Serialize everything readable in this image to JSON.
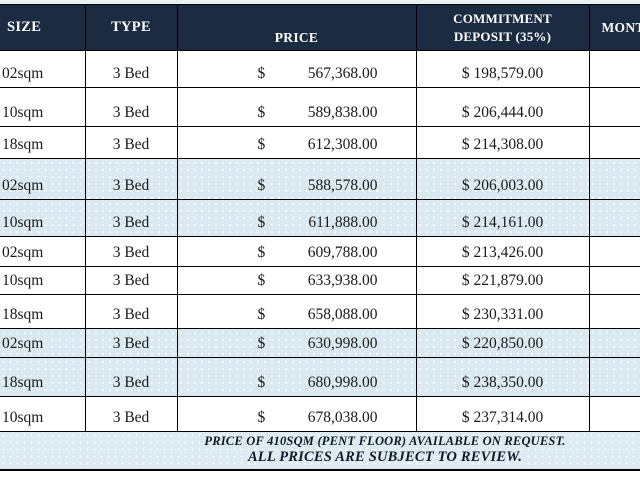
{
  "table": {
    "currency_symbol": "$",
    "columns": {
      "size": "SIZE",
      "type": "TYPE",
      "price": "PRICE",
      "deposit": "COMMITMENT DEPOSIT (35%)",
      "monthly": "MONT"
    },
    "rows": [
      {
        "size": "02sqm",
        "type": "3 Bed",
        "price": "567,368.00",
        "deposit": "$ 198,579.00",
        "highlighted": false
      },
      {
        "size": "10sqm",
        "type": "3 Bed",
        "price": "589,838.00",
        "deposit": "$ 206,444.00",
        "highlighted": false
      },
      {
        "size": "18sqm",
        "type": "3 Bed",
        "price": "612,308.00",
        "deposit": "$ 214,308.00",
        "highlighted": false
      },
      {
        "size": "02sqm",
        "type": "3 Bed",
        "price": "588,578.00",
        "deposit": "$ 206,003.00",
        "highlighted": true
      },
      {
        "size": "10sqm",
        "type": "3 Bed",
        "price": "611,888.00",
        "deposit": "$ 214,161.00",
        "highlighted": true
      },
      {
        "size": "02sqm",
        "type": "3 Bed",
        "price": "609,788.00",
        "deposit": "$ 213,426.00",
        "highlighted": false
      },
      {
        "size": "10sqm",
        "type": "3 Bed",
        "price": "633,938.00",
        "deposit": "$ 221,879.00",
        "highlighted": false
      },
      {
        "size": "18sqm",
        "type": "3 Bed",
        "price": "658,088.00",
        "deposit": "$ 230,331.00",
        "highlighted": false
      },
      {
        "size": "02sqm",
        "type": "3 Bed",
        "price": "630,998.00",
        "deposit": "$ 220,850.00",
        "highlighted": true
      },
      {
        "size": "18sqm",
        "type": "3 Bed",
        "price": "680,998.00",
        "deposit": "$ 238,350.00",
        "highlighted": true
      },
      {
        "size": "10sqm",
        "type": "3 Bed",
        "price": "678,038.00",
        "deposit": "$ 237,314.00",
        "highlighted": false
      }
    ]
  },
  "footer": {
    "line1": "PRICE OF 410SQM (PENT FLOOR) AVAILABLE ON REQUEST.",
    "line2": "ALL PRICES ARE SUBJECT TO REVIEW."
  },
  "colors": {
    "header_bg": "#1A2B42",
    "header_text": "#FFFFFF",
    "row_highlight": "#DAE9F1",
    "row_default": "#FFFFFF",
    "border": "#000000",
    "body_text": "#1A1A1A",
    "footer_bg": "#DCEAF2",
    "footer_text": "#101A2E"
  }
}
